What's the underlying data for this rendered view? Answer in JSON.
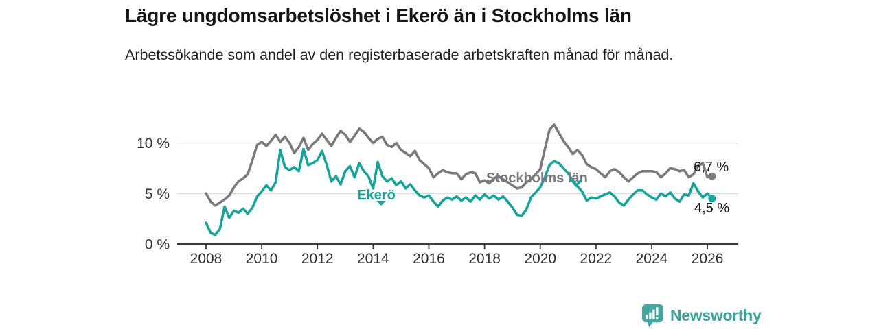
{
  "header": {
    "title": "Lägre ungdomsarbetslöshet i Ekerö än i Stockholms län",
    "subtitle": "Arbetssökande som andel av den registerbaserade arbetskraften månad för månad."
  },
  "branding": {
    "logo_text": "Newsworthy",
    "logo_icon": "bar-chart-speech-bubble-icon",
    "brand_color": "#3EA19B"
  },
  "chart_data": {
    "type": "line",
    "title": "Lägre ungdomsarbetslöshet i Ekerö än i Stockholms län",
    "xlabel": "",
    "ylabel": "Arbetssökande som andel av den registerbaserade arbetskraften",
    "unit": "%",
    "grid": "horizontal",
    "legend_position": "inline-labels",
    "xlim": [
      2006.8,
      2027.1
    ],
    "ylim": [
      0,
      12.5
    ],
    "x_start": 2008,
    "x_step": 0.1666667,
    "x_ticks": [
      {
        "label": "2008",
        "value": 2008
      },
      {
        "label": "2010",
        "value": 2010
      },
      {
        "label": "2012",
        "value": 2012
      },
      {
        "label": "2014",
        "value": 2014
      },
      {
        "label": "2016",
        "value": 2016
      },
      {
        "label": "2018",
        "value": 2018
      },
      {
        "label": "2020",
        "value": 2020
      },
      {
        "label": "2022",
        "value": 2022
      },
      {
        "label": "2024",
        "value": 2024
      },
      {
        "label": "2026",
        "value": 2026
      }
    ],
    "y_ticks": [
      {
        "label": "0 %",
        "value": 0
      },
      {
        "label": "5 %",
        "value": 5
      },
      {
        "label": "10 %",
        "value": 10
      }
    ],
    "series": [
      {
        "name": "Stockholms län",
        "color": "#797980",
        "end_label": "6,7 %",
        "end_value": 6.7,
        "values": [
          5.0,
          4.2,
          3.8,
          4.1,
          4.4,
          4.8,
          5.6,
          6.2,
          6.5,
          6.9,
          8.3,
          9.8,
          10.1,
          9.7,
          10.2,
          10.8,
          10.1,
          10.6,
          10.0,
          9.0,
          9.6,
          10.5,
          9.3,
          9.9,
          10.3,
          10.9,
          10.3,
          9.7,
          10.5,
          11.2,
          10.8,
          10.1,
          10.7,
          11.4,
          11.1,
          10.5,
          10.0,
          10.4,
          10.6,
          9.8,
          9.6,
          10.0,
          9.3,
          9.0,
          8.7,
          9.2,
          8.3,
          7.9,
          7.5,
          6.6,
          7.0,
          7.3,
          7.1,
          7.0,
          7.0,
          6.4,
          6.9,
          7.1,
          7.0,
          6.1,
          6.3,
          6.0,
          6.5,
          6.7,
          6.4,
          6.1,
          5.8,
          5.5,
          5.6,
          6.1,
          6.4,
          6.9,
          7.4,
          9.4,
          11.3,
          11.8,
          11.0,
          10.2,
          9.6,
          8.9,
          9.3,
          8.8,
          7.9,
          7.6,
          7.4,
          7.0,
          6.6,
          7.2,
          7.4,
          7.1,
          6.6,
          6.2,
          6.6,
          7.0,
          7.2,
          7.2,
          7.2,
          7.1,
          6.6,
          7.0,
          7.5,
          7.4,
          7.2,
          7.3,
          6.6,
          6.9,
          7.7,
          8.0,
          6.6,
          6.7
        ]
      },
      {
        "name": "Ekerö",
        "color": "#16A39A",
        "end_label": "4,5 %",
        "end_value": 4.5,
        "values": [
          2.1,
          1.1,
          0.9,
          1.5,
          3.7,
          2.6,
          3.3,
          3.1,
          3.5,
          3.0,
          3.6,
          4.7,
          5.2,
          5.8,
          5.3,
          6.1,
          9.3,
          7.6,
          7.3,
          7.6,
          7.2,
          9.4,
          7.8,
          8.0,
          8.3,
          9.2,
          7.8,
          6.2,
          6.7,
          5.9,
          7.2,
          7.7,
          6.6,
          8.0,
          7.2,
          6.7,
          5.5,
          8.1,
          6.7,
          6.2,
          6.5,
          5.8,
          6.2,
          5.5,
          5.9,
          5.3,
          4.8,
          4.6,
          4.8,
          4.2,
          3.7,
          4.3,
          4.6,
          4.4,
          4.7,
          4.3,
          4.6,
          4.2,
          4.8,
          4.4,
          4.9,
          4.5,
          4.8,
          4.4,
          4.7,
          4.2,
          3.6,
          2.9,
          2.8,
          3.4,
          4.6,
          5.1,
          5.6,
          6.6,
          7.8,
          8.2,
          8.0,
          7.5,
          7.0,
          6.3,
          5.7,
          5.2,
          4.3,
          4.6,
          4.5,
          4.7,
          4.9,
          5.1,
          4.7,
          4.1,
          3.8,
          4.4,
          4.9,
          5.3,
          5.3,
          4.9,
          4.6,
          4.4,
          5.0,
          4.7,
          5.1,
          4.5,
          4.2,
          4.9,
          4.8,
          6.0,
          5.2,
          4.6,
          5.0,
          4.5
        ]
      }
    ]
  }
}
